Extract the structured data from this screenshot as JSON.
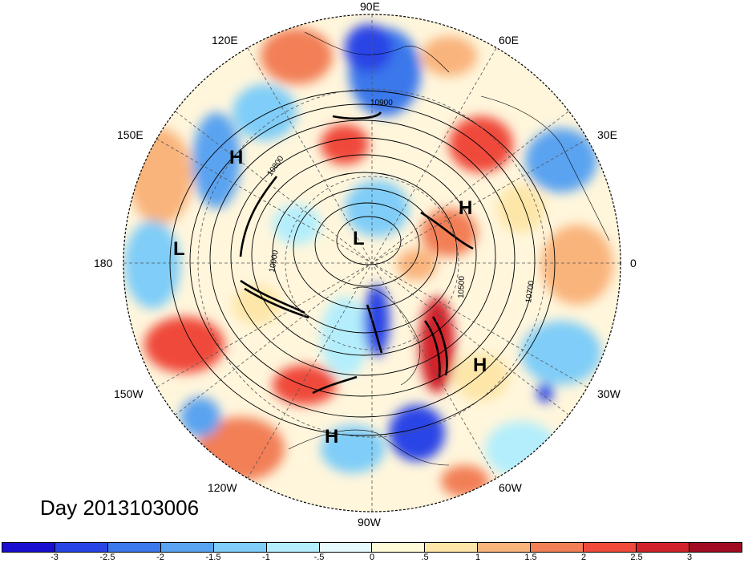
{
  "title": "Day 2013103006",
  "longitude_labels": {
    "e90": "90E",
    "e120": "120E",
    "e60": "60E",
    "e150": "150E",
    "e30": "30E",
    "w180": "180",
    "zero": "0",
    "w150": "150W",
    "w30": "30W",
    "w120": "120W",
    "w60": "60W",
    "w90": "90W"
  },
  "pressure_centers": [
    {
      "label": "H",
      "region": "NE Pacific / Siberia"
    },
    {
      "label": "L",
      "region": "Pacific dateline"
    },
    {
      "label": "L",
      "region": "Arctic"
    },
    {
      "label": "H",
      "region": "Scandinavia / Barents"
    },
    {
      "label": "H",
      "region": "Central Atlantic"
    },
    {
      "label": "H",
      "region": "Gulf of Mexico"
    }
  ],
  "contour_labels": [
    "10900",
    "10800",
    "10000",
    "10500",
    "10700"
  ],
  "colorbar": {
    "colors": [
      "#1a0fd0",
      "#2a45e6",
      "#3b78eb",
      "#5aa3f0",
      "#7fcdf8",
      "#b4eefc",
      "#e7fbff",
      "#fffad7",
      "#fde6a8",
      "#f9b47c",
      "#f27f56",
      "#ef4a3a",
      "#d2222b",
      "#a10c22"
    ],
    "labels": [
      "-3",
      "-2.5",
      "-2",
      "-1.5",
      "-1",
      "-.5",
      "0",
      ".5",
      "1",
      "1.5",
      "2",
      "2.5",
      "3"
    ]
  }
}
